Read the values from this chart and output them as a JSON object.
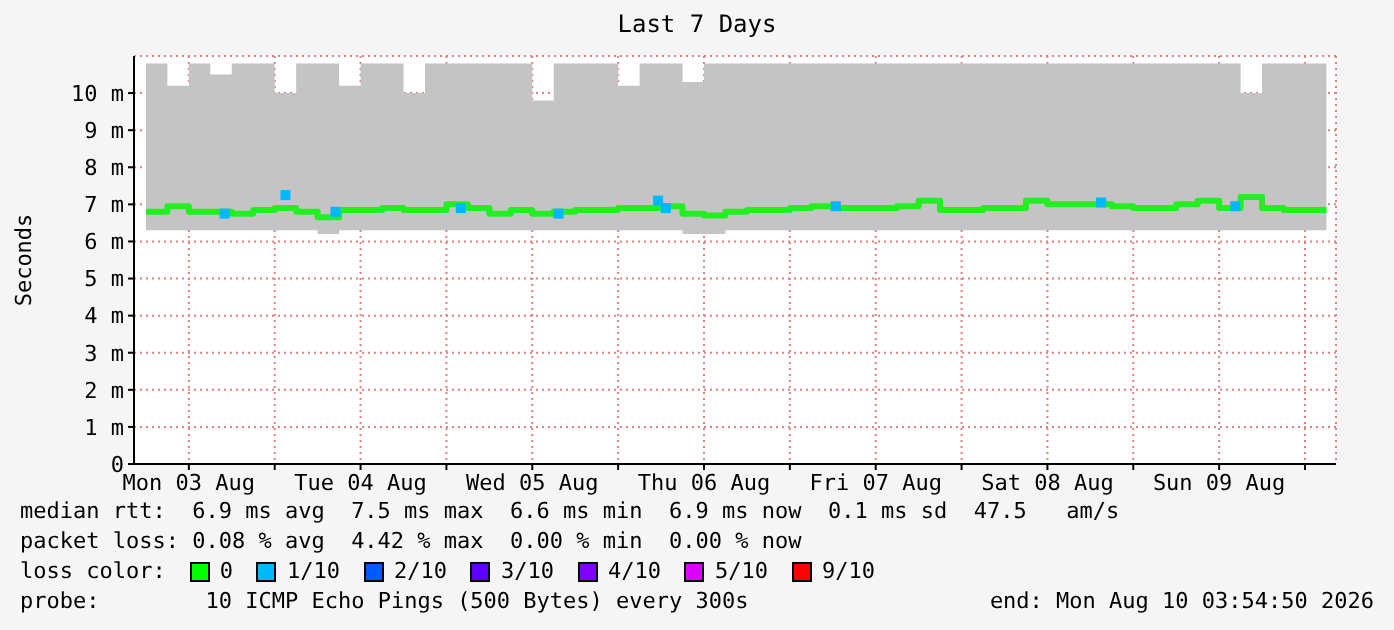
{
  "chart_data": {
    "type": "step",
    "title": "Last 7 Days",
    "ylabel": "Seconds",
    "xlim": [
      "2026-08-03T04:20",
      "2026-08-10T04:20"
    ],
    "xticks": [
      {
        "value": "2026-08-03T12:00",
        "label": "Mon 03 Aug"
      },
      {
        "value": "2026-08-04T00:00",
        "label": null
      },
      {
        "value": "2026-08-04T12:00",
        "label": "Tue 04 Aug"
      },
      {
        "value": "2026-08-05T00:00",
        "label": null
      },
      {
        "value": "2026-08-05T12:00",
        "label": "Wed 05 Aug"
      },
      {
        "value": "2026-08-06T00:00",
        "label": null
      },
      {
        "value": "2026-08-06T12:00",
        "label": "Thu 06 Aug"
      },
      {
        "value": "2026-08-07T00:00",
        "label": null
      },
      {
        "value": "2026-08-07T12:00",
        "label": "Fri 07 Aug"
      },
      {
        "value": "2026-08-08T00:00",
        "label": null
      },
      {
        "value": "2026-08-08T12:00",
        "label": "Sat 08 Aug"
      },
      {
        "value": "2026-08-09T00:00",
        "label": null
      },
      {
        "value": "2026-08-09T12:00",
        "label": "Sun 09 Aug"
      },
      {
        "value": "2026-08-10T00:00",
        "label": null
      }
    ],
    "ylim": [
      0,
      11
    ],
    "yticks": [
      0,
      {
        "value": 1,
        "label": "1 m"
      },
      {
        "value": 2,
        "label": "2 m"
      },
      {
        "value": 3,
        "label": "3 m"
      },
      {
        "value": 4,
        "label": "4 m"
      },
      {
        "value": 5,
        "label": "5 m"
      },
      {
        "value": 6,
        "label": "6 m"
      },
      {
        "value": 7,
        "label": "7 m"
      },
      {
        "value": 8,
        "label": "8 m"
      },
      {
        "value": 9,
        "label": "9 m"
      },
      {
        "value": 10,
        "label": "10 m"
      }
    ],
    "grid": true,
    "x": [
      "2026-08-03T06:00",
      "2026-08-03T09:00",
      "2026-08-03T12:00",
      "2026-08-03T15:00",
      "2026-08-03T18:00",
      "2026-08-03T21:00",
      "2026-08-04T00:00",
      "2026-08-04T03:00",
      "2026-08-04T06:00",
      "2026-08-04T09:00",
      "2026-08-04T12:00",
      "2026-08-04T15:00",
      "2026-08-04T18:00",
      "2026-08-04T21:00",
      "2026-08-05T00:00",
      "2026-08-05T03:00",
      "2026-08-05T06:00",
      "2026-08-05T09:00",
      "2026-08-05T12:00",
      "2026-08-05T15:00",
      "2026-08-05T18:00",
      "2026-08-05T21:00",
      "2026-08-06T00:00",
      "2026-08-06T03:00",
      "2026-08-06T06:00",
      "2026-08-06T09:00",
      "2026-08-06T12:00",
      "2026-08-06T15:00",
      "2026-08-06T18:00",
      "2026-08-06T21:00",
      "2026-08-07T00:00",
      "2026-08-07T03:00",
      "2026-08-07T06:00",
      "2026-08-07T09:00",
      "2026-08-07T12:00",
      "2026-08-07T15:00",
      "2026-08-07T18:00",
      "2026-08-07T21:00",
      "2026-08-08T00:00",
      "2026-08-08T03:00",
      "2026-08-08T06:00",
      "2026-08-08T09:00",
      "2026-08-08T12:00",
      "2026-08-08T15:00",
      "2026-08-08T18:00",
      "2026-08-08T21:00",
      "2026-08-09T00:00",
      "2026-08-09T03:00",
      "2026-08-09T06:00",
      "2026-08-09T09:00",
      "2026-08-09T12:00",
      "2026-08-09T15:00",
      "2026-08-09T18:00",
      "2026-08-09T21:00",
      "2026-08-10T00:00",
      "2026-08-10T03:00"
    ],
    "series": [
      {
        "color": "#22ee22",
        "values": [
          6.8,
          6.95,
          6.8,
          6.8,
          6.75,
          6.85,
          6.9,
          6.8,
          6.65,
          6.85,
          6.85,
          6.9,
          6.85,
          6.85,
          7.0,
          6.9,
          6.75,
          6.85,
          6.75,
          6.8,
          6.85,
          6.85,
          6.9,
          6.9,
          6.95,
          6.75,
          6.7,
          6.8,
          6.85,
          6.85,
          6.9,
          6.95,
          6.9,
          6.9,
          6.9,
          6.95,
          7.1,
          6.85,
          6.85,
          6.9,
          6.9,
          7.1,
          7.0,
          7.0,
          7.0,
          6.95,
          6.9,
          6.9,
          7.0,
          7.1,
          6.9,
          7.2,
          6.9,
          6.85,
          6.85,
          6.85
        ],
        "lower": [
          6.3,
          6.3,
          6.3,
          6.3,
          6.3,
          6.3,
          6.3,
          6.3,
          6.2,
          6.3,
          6.3,
          6.3,
          6.3,
          6.3,
          6.3,
          6.3,
          6.3,
          6.3,
          6.3,
          6.3,
          6.3,
          6.3,
          6.3,
          6.3,
          6.3,
          6.2,
          6.2,
          6.3,
          6.3,
          6.3,
          6.3,
          6.3,
          6.3,
          6.3,
          6.3,
          6.3,
          6.3,
          6.3,
          6.3,
          6.3,
          6.3,
          6.3,
          6.3,
          6.3,
          6.3,
          6.3,
          6.3,
          6.3,
          6.3,
          6.3,
          6.3,
          6.3,
          6.3,
          6.3,
          6.3,
          6.3
        ],
        "upper": [
          10.8,
          10.2,
          10.8,
          10.5,
          10.8,
          10.8,
          10.0,
          10.8,
          10.8,
          10.2,
          10.8,
          10.8,
          10.0,
          10.8,
          10.8,
          10.8,
          10.8,
          10.8,
          9.8,
          10.8,
          10.8,
          10.8,
          10.2,
          10.8,
          10.8,
          10.3,
          10.8,
          10.8,
          10.8,
          10.8,
          10.8,
          10.8,
          10.8,
          10.8,
          10.8,
          10.8,
          10.8,
          10.8,
          10.8,
          10.8,
          10.8,
          10.8,
          10.8,
          10.8,
          10.8,
          10.8,
          10.8,
          10.8,
          10.8,
          10.8,
          10.8,
          10.0,
          10.8,
          10.8,
          10.8,
          10.8
        ]
      },
      {
        "type": "scatter",
        "color": "#00b8ff",
        "marker": "square",
        "x": [
          "2026-08-03T17:00",
          "2026-08-04T01:30",
          "2026-08-04T08:30",
          "2026-08-05T02:00",
          "2026-08-05T15:40",
          "2026-08-06T05:35",
          "2026-08-06T06:40",
          "2026-08-07T06:25",
          "2026-08-08T19:30",
          "2026-08-09T14:15"
        ],
        "values": [
          6.75,
          7.25,
          6.8,
          6.9,
          6.75,
          7.1,
          6.9,
          6.95,
          7.05,
          6.95
        ]
      }
    ],
    "annotations": [
      "median rtt:  6.9 ms avg  7.5 ms max  6.6 ms min  6.9 ms now  0.1 ms sd  47.5   am/s",
      "packet loss: 0.08 % avg  4.42 % max  0.00 % min  0.00 % now",
      "loss color:",
      "0",
      "1/10",
      "2/10",
      "3/10",
      "4/10",
      "5/10",
      "9/10",
      "probe:",
      "10 ICMP Echo Pings (500 Bytes) every 300s",
      "end: Mon Aug 10 03:54:50 2026"
    ]
  }
}
